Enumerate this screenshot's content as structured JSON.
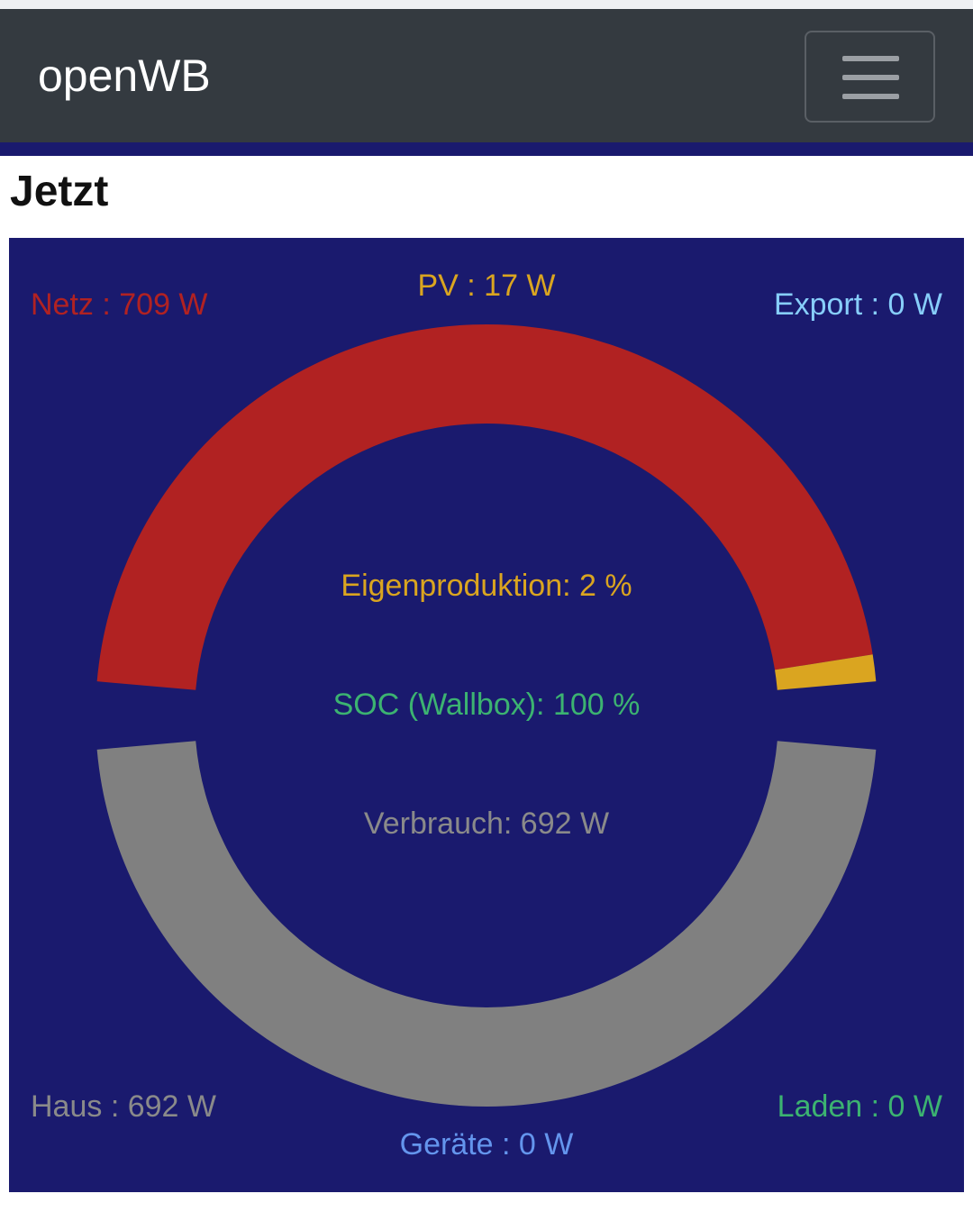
{
  "navbar": {
    "brand": "openWB",
    "menu_icon": "hamburger-menu-icon"
  },
  "page": {
    "section_title": "Jetzt"
  },
  "energy": {
    "netz": "Netz : 709 W",
    "pv": "PV : 17 W",
    "export": "Export : 0 W",
    "eigenproduktion": "Eigenproduktion: 2 %",
    "soc": "SOC (Wallbox): 100 %",
    "verbrauch": "Verbrauch: 692 W",
    "haus": "Haus : 692 W",
    "laden": "Laden : 0 W",
    "geraete": "Geräte : 0 W"
  },
  "chart_data": {
    "type": "pie",
    "source": {
      "categories": [
        "Netz",
        "PV",
        "Export"
      ],
      "values": [
        709,
        17,
        0
      ]
    },
    "usage": {
      "categories": [
        "Haus",
        "Laden",
        "Geräte"
      ],
      "values": [
        692,
        0,
        0
      ]
    }
  },
  "colors": {
    "panel_bg": "#1a1a6e",
    "netz": "#b12222",
    "pv": "#daa520",
    "export": "#87cefa",
    "haus": "#808080",
    "laden": "#3cb371",
    "geraete": "#6495ed",
    "navbar": "#343a40"
  }
}
